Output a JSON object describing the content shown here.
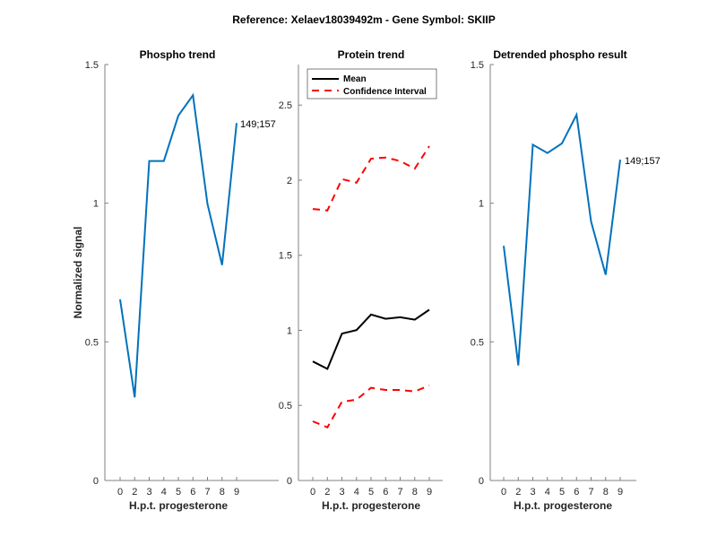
{
  "figure_title": "Reference:  Xelaev18039492m - Gene Symbol:  SKIIP",
  "colors": {
    "phospho": "#0072BD",
    "mean": "#000000",
    "ci": "#FF0000",
    "axis": "#808080"
  },
  "chart_data": [
    {
      "type": "line",
      "title": "Phospho trend",
      "xlabel": "H.p.t. progesterone",
      "ylabel": "Normalized signal",
      "categories": [
        "0",
        "2",
        "3",
        "4",
        "5",
        "6",
        "7",
        "8",
        "9"
      ],
      "ylim": [
        0,
        1.5
      ],
      "yticks": [
        "0",
        "0.5",
        "1",
        "1.5"
      ],
      "ytick_values": [
        0,
        0.5,
        1,
        1.5
      ],
      "series": [
        {
          "name": "149;157",
          "values": [
            0.653,
            0.3,
            1.152,
            1.152,
            1.316,
            1.389,
            0.997,
            0.777,
            1.289
          ]
        }
      ],
      "annotation": "149;157"
    },
    {
      "type": "line",
      "title": "Protein trend",
      "xlabel": "H.p.t. progesterone",
      "ylabel": "",
      "categories": [
        "0",
        "2",
        "3",
        "4",
        "5",
        "6",
        "7",
        "8",
        "9"
      ],
      "ylim": [
        0,
        2.77
      ],
      "yticks": [
        "0",
        "0.5",
        "1",
        "1.5",
        "2",
        "2.5"
      ],
      "ytick_values": [
        0,
        0.5,
        1,
        1.5,
        2,
        2.5
      ],
      "legend": {
        "placement": "top",
        "entries": [
          "Mean",
          "Confidence Interval"
        ]
      },
      "series": [
        {
          "name": "Mean",
          "values": [
            0.793,
            0.743,
            0.978,
            1.002,
            1.105,
            1.077,
            1.087,
            1.071,
            1.137
          ]
        },
        {
          "name": "Confidence Interval (upper)",
          "values": [
            1.808,
            1.798,
            2.007,
            1.983,
            2.143,
            2.151,
            2.127,
            2.077,
            2.226
          ]
        },
        {
          "name": "Confidence Interval (lower)",
          "values": [
            0.394,
            0.354,
            0.524,
            0.538,
            0.617,
            0.603,
            0.603,
            0.593,
            0.633
          ]
        }
      ]
    },
    {
      "type": "line",
      "title": "Detrended phospho result",
      "xlabel": "H.p.t. progesterone",
      "ylabel": "",
      "categories": [
        "0",
        "2",
        "3",
        "4",
        "5",
        "6",
        "7",
        "8",
        "9"
      ],
      "ylim": [
        0,
        1.5
      ],
      "yticks": [
        "0",
        "0.5",
        "1",
        "1.5"
      ],
      "ytick_values": [
        0,
        0.5,
        1,
        1.5
      ],
      "series": [
        {
          "name": "149;157",
          "values": [
            0.846,
            0.415,
            1.211,
            1.181,
            1.216,
            1.319,
            0.934,
            0.742,
            1.157
          ]
        }
      ],
      "annotation": "149;157"
    }
  ]
}
